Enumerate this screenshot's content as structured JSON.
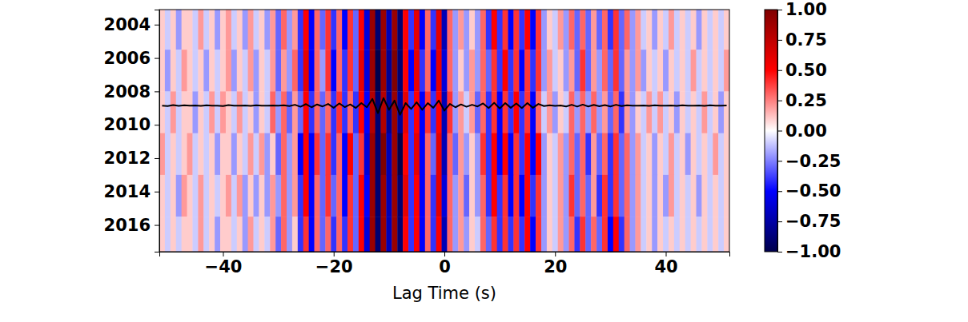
{
  "chart_data": {
    "type": "heatmap",
    "x_label": "Lag Time (s)",
    "xlim": [
      -51.5,
      51.5
    ],
    "xticks": [
      {
        "value": -40,
        "label": "−40"
      },
      {
        "value": -20,
        "label": "−20"
      },
      0,
      20,
      40
    ],
    "ylim": [
      2003.1,
      2017.6
    ],
    "yticks": [
      2004,
      2006,
      2008,
      2010,
      2012,
      2014,
      2016
    ],
    "x": [
      -51,
      -50,
      -49,
      -48,
      -47,
      -46,
      -45,
      -44,
      -43,
      -42,
      -41,
      -40,
      -39,
      -38,
      -37,
      -36,
      -35,
      -34,
      -33,
      -32,
      -31,
      -30,
      -29,
      -28,
      -27,
      -26,
      -25,
      -24,
      -23,
      -22,
      -21,
      -20,
      -19,
      -18,
      -17,
      -16,
      -15,
      -14,
      -13,
      -12,
      -11,
      -10,
      -9,
      -8,
      -7,
      -6,
      -5,
      -4,
      -3,
      -2,
      -1,
      0,
      1,
      2,
      3,
      4,
      5,
      6,
      7,
      8,
      9,
      10,
      11,
      12,
      13,
      14,
      15,
      16,
      17,
      18,
      19,
      20,
      21,
      22,
      23,
      24,
      25,
      26,
      27,
      28,
      29,
      30,
      31,
      32,
      33,
      34,
      35,
      36,
      37,
      38,
      39,
      40,
      41,
      42,
      43,
      44,
      45,
      46,
      47,
      48,
      49,
      50,
      51
    ],
    "y_bins": [
      2003.1,
      2005.5,
      2008,
      2010.5,
      2013,
      2015.5,
      2017.6
    ],
    "cells": [
      [
        0.1,
        -0.1,
        0.1,
        -0.2,
        0.1,
        0.1,
        -0.1,
        0.2,
        -0.1,
        0.1,
        -0.2,
        0.1,
        0.2,
        -0.1,
        0.1,
        -0.2,
        0.2,
        -0.1,
        0.1,
        -0.2,
        0.2,
        -0.3,
        0.3,
        -0.2,
        0.2,
        -0.4,
        0.5,
        -0.5,
        0.3,
        -0.3,
        0.4,
        -0.4,
        0.3,
        -0.5,
        0.4,
        -0.3,
        0.5,
        -0.6,
        0.9,
        -0.9,
        0.9,
        -0.7,
        0.9,
        -0.9,
        0.5,
        -0.4,
        0.6,
        -0.5,
        0.3,
        -0.4,
        0.6,
        -0.7,
        0.3,
        -0.2,
        0.2,
        -0.2,
        0.1,
        -0.2,
        0.3,
        -0.4,
        0.5,
        -0.4,
        0.4,
        -0.5,
        0.4,
        -0.4,
        0.5,
        -0.5,
        0.4,
        -0.2,
        0.1,
        -0.1,
        0.2,
        -0.2,
        0.3,
        -0.3,
        0.3,
        -0.3,
        0.2,
        -0.3,
        0.3,
        -0.4,
        0.4,
        -0.3,
        0.3,
        -0.2,
        0.2,
        -0.1,
        0.1,
        -0.2,
        0.1,
        -0.1,
        0.2,
        -0.1,
        0.1,
        -0.1,
        0.1,
        -0.2,
        0.1,
        -0.1,
        0.1,
        -0.1,
        0.1
      ],
      [
        0.1,
        -0.2,
        0.1,
        -0.1,
        0.2,
        0.1,
        -0.1,
        0.1,
        -0.2,
        0.1,
        -0.1,
        0.1,
        0.2,
        -0.2,
        0.1,
        -0.1,
        0.2,
        -0.2,
        0.1,
        -0.1,
        0.2,
        -0.3,
        0.2,
        -0.2,
        0.3,
        -0.4,
        0.6,
        -0.5,
        0.3,
        -0.2,
        0.4,
        -0.5,
        0.3,
        -0.4,
        0.4,
        -0.3,
        0.6,
        -0.6,
        0.9,
        -1.0,
        0.9,
        -0.8,
        1.0,
        -0.9,
        0.5,
        -0.5,
        0.6,
        -0.4,
        0.3,
        -0.5,
        0.6,
        -0.6,
        0.3,
        -0.2,
        0.1,
        -0.2,
        0.2,
        -0.2,
        0.3,
        -0.3,
        0.4,
        -0.4,
        0.5,
        -0.4,
        0.4,
        -0.5,
        0.4,
        -0.4,
        0.4,
        -0.2,
        0.2,
        -0.1,
        0.1,
        -0.2,
        0.2,
        -0.3,
        0.4,
        -0.3,
        0.2,
        -0.2,
        0.3,
        -0.3,
        0.4,
        -0.3,
        0.2,
        -0.2,
        0.2,
        -0.2,
        0.1,
        -0.1,
        0.1,
        -0.2,
        0.1,
        -0.1,
        0.1,
        -0.1,
        0.2,
        -0.1,
        0.1,
        -0.1,
        0.1,
        -0.1,
        0.2
      ],
      [
        0.1,
        -0.1,
        0.2,
        -0.1,
        0.1,
        0.1,
        -0.2,
        0.1,
        -0.1,
        0.2,
        -0.1,
        0.2,
        0.1,
        -0.1,
        0.2,
        -0.1,
        0.1,
        -0.2,
        0.1,
        -0.1,
        0.3,
        -0.2,
        0.3,
        -0.3,
        0.2,
        -0.3,
        0.5,
        -0.4,
        0.3,
        -0.3,
        0.3,
        -0.4,
        0.4,
        -0.4,
        0.3,
        -0.4,
        0.5,
        -0.5,
        0.8,
        -0.9,
        0.8,
        -0.8,
        0.9,
        -0.8,
        0.6,
        -0.4,
        0.5,
        -0.5,
        0.4,
        -0.4,
        0.5,
        -0.7,
        0.4,
        -0.2,
        0.2,
        -0.1,
        0.2,
        -0.3,
        0.3,
        -0.4,
        0.4,
        -0.5,
        0.4,
        -0.4,
        0.5,
        -0.4,
        0.4,
        -0.5,
        0.3,
        -0.1,
        0.2,
        -0.2,
        0.1,
        -0.1,
        0.3,
        -0.2,
        0.3,
        -0.2,
        0.3,
        -0.2,
        0.2,
        -0.3,
        0.3,
        -0.4,
        0.2,
        -0.2,
        0.1,
        -0.1,
        0.2,
        -0.1,
        0.2,
        -0.1,
        0.1,
        -0.2,
        0.1,
        -0.1,
        0.1,
        -0.1,
        0.2,
        -0.1,
        0.1,
        -0.2,
        0.1
      ],
      [
        0.2,
        -0.1,
        0.1,
        -0.1,
        0.1,
        0.2,
        -0.1,
        0.1,
        -0.1,
        0.1,
        -0.2,
        0.1,
        0.1,
        -0.2,
        0.1,
        -0.1,
        0.2,
        -0.1,
        0.2,
        -0.2,
        0.1,
        -0.3,
        0.3,
        -0.2,
        0.2,
        -0.5,
        0.5,
        -0.5,
        0.4,
        -0.3,
        0.4,
        -0.4,
        0.3,
        -0.5,
        0.5,
        -0.3,
        0.4,
        -0.6,
        0.9,
        -0.9,
        1.0,
        -0.7,
        0.9,
        -1.0,
        0.5,
        -0.4,
        0.6,
        -0.5,
        0.3,
        -0.3,
        0.6,
        -0.7,
        0.3,
        -0.3,
        0.2,
        -0.2,
        0.1,
        -0.2,
        0.4,
        -0.4,
        0.5,
        -0.5,
        0.5,
        -0.5,
        0.4,
        -0.4,
        0.5,
        -0.5,
        0.5,
        -0.2,
        0.1,
        -0.1,
        0.2,
        -0.2,
        0.3,
        -0.3,
        0.3,
        -0.4,
        0.2,
        -0.3,
        0.3,
        -0.4,
        0.4,
        -0.3,
        0.3,
        -0.2,
        0.2,
        -0.1,
        0.1,
        -0.2,
        0.1,
        -0.1,
        0.2,
        -0.1,
        0.1,
        -0.2,
        0.1,
        -0.1,
        0.1,
        -0.1,
        0.2,
        -0.1,
        0.1
      ],
      [
        0.1,
        -0.1,
        0.1,
        -0.2,
        0.2,
        0.1,
        -0.1,
        0.2,
        -0.1,
        0.1,
        -0.1,
        0.1,
        0.2,
        -0.1,
        0.2,
        -0.2,
        0.1,
        -0.2,
        0.1,
        -0.2,
        0.2,
        -0.2,
        0.3,
        -0.2,
        0.2,
        -0.4,
        0.5,
        -0.5,
        0.3,
        -0.3,
        0.4,
        -0.3,
        0.3,
        -0.5,
        0.4,
        -0.3,
        0.5,
        -0.5,
        0.9,
        -0.9,
        0.9,
        -0.7,
        0.9,
        -0.9,
        0.6,
        -0.4,
        0.5,
        -0.5,
        0.3,
        -0.4,
        0.6,
        -0.6,
        0.3,
        -0.2,
        0.2,
        -0.3,
        0.1,
        -0.2,
        0.3,
        -0.4,
        0.5,
        -0.4,
        0.4,
        -0.5,
        0.4,
        -0.5,
        0.5,
        -0.4,
        0.4,
        -0.2,
        0.1,
        -0.1,
        0.2,
        -0.2,
        0.4,
        -0.3,
        0.3,
        -0.3,
        0.2,
        -0.4,
        0.4,
        -0.4,
        0.4,
        -0.3,
        0.3,
        -0.2,
        0.2,
        -0.1,
        0.1,
        -0.2,
        0.1,
        -0.2,
        0.2,
        -0.1,
        0.1,
        -0.1,
        0.1,
        -0.2,
        0.1,
        -0.1,
        0.1,
        -0.1,
        0.1
      ],
      [
        0.1,
        -0.1,
        0.1,
        -0.1,
        0.1,
        0.1,
        -0.1,
        0.2,
        -0.1,
        0.1,
        -0.2,
        0.1,
        0.1,
        -0.1,
        0.1,
        -0.2,
        0.2,
        -0.1,
        0.1,
        -0.1,
        0.2,
        -0.3,
        0.3,
        -0.2,
        0.1,
        -0.4,
        0.4,
        -0.5,
        0.3,
        -0.3,
        0.3,
        -0.4,
        0.3,
        -0.4,
        0.4,
        -0.3,
        0.5,
        -0.6,
        0.9,
        -0.9,
        0.9,
        -0.7,
        0.9,
        -0.9,
        0.5,
        -0.4,
        0.5,
        -0.5,
        0.3,
        -0.4,
        0.5,
        -0.7,
        0.3,
        -0.2,
        0.2,
        -0.2,
        0.1,
        -0.1,
        0.3,
        -0.3,
        0.4,
        -0.4,
        0.4,
        -0.4,
        0.4,
        -0.4,
        0.5,
        -0.5,
        0.4,
        -0.2,
        0.1,
        -0.1,
        0.2,
        -0.2,
        0.3,
        -0.4,
        0.4,
        -0.3,
        0.3,
        -0.3,
        0.4,
        -0.5,
        0.5,
        -0.4,
        0.3,
        -0.2,
        0.2,
        -0.1,
        0.1,
        -0.2,
        0.1,
        -0.1,
        0.1,
        -0.1,
        0.1,
        -0.1,
        0.1,
        -0.1,
        0.1,
        -0.1,
        0.1,
        -0.1,
        0.1
      ]
    ],
    "colorbar": {
      "range": [
        -1,
        1
      ],
      "ticks": [
        {
          "value": -1,
          "label": "−1.00"
        },
        {
          "value": -0.75,
          "label": "−0.75"
        },
        {
          "value": -0.5,
          "label": "−0.50"
        },
        {
          "value": -0.25,
          "label": "−0.25"
        },
        {
          "value": 0,
          "label": "0.00"
        },
        {
          "value": 0.25,
          "label": "0.25"
        },
        {
          "value": 0.5,
          "label": "0.50"
        },
        {
          "value": 0.75,
          "label": "0.75"
        },
        {
          "value": 1,
          "label": "1.00"
        }
      ]
    },
    "series": [
      {
        "type": "line",
        "color": "#000000",
        "values": [
          2008.85,
          2008.88,
          2008.82,
          2008.87,
          2008.83,
          2008.86,
          2008.84,
          2008.87,
          2008.83,
          2008.86,
          2008.85,
          2008.88,
          2008.82,
          2008.86,
          2008.85,
          2008.84,
          2008.87,
          2008.83,
          2008.86,
          2008.85,
          2008.84,
          2008.86,
          2008.83,
          2008.88,
          2008.8,
          2008.92,
          2008.76,
          2008.95,
          2008.78,
          2008.9,
          2008.75,
          2008.98,
          2008.72,
          2008.94,
          2008.78,
          2008.99,
          2008.7,
          2008.95,
          2008.45,
          2009.3,
          2008.4,
          2009.1,
          2008.55,
          2009.4,
          2008.7,
          2009.05,
          2008.65,
          2009.1,
          2008.7,
          2008.98,
          2008.55,
          2009.15,
          2008.75,
          2008.95,
          2008.78,
          2008.92,
          2008.8,
          2008.9,
          2008.72,
          2009.0,
          2008.68,
          2009.02,
          2008.7,
          2008.98,
          2008.72,
          2009.0,
          2008.7,
          2008.98,
          2008.75,
          2008.88,
          2008.83,
          2008.87,
          2008.84,
          2008.9,
          2008.8,
          2008.91,
          2008.79,
          2008.9,
          2008.81,
          2008.89,
          2008.82,
          2008.9,
          2008.8,
          2008.88,
          2008.83,
          2008.86,
          2008.85,
          2008.84,
          2008.87,
          2008.83,
          2008.86,
          2008.85,
          2008.84,
          2008.87,
          2008.83,
          2008.86,
          2008.85,
          2008.84,
          2008.87,
          2008.83,
          2008.86,
          2008.85,
          2008.84
        ]
      }
    ]
  }
}
